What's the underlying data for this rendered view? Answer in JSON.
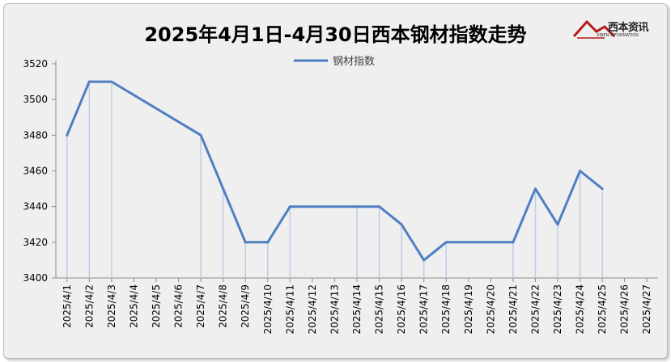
{
  "chart_data": {
    "type": "line",
    "title": "2025年4月1日-4月30日西本钢材指数走势",
    "legend": [
      "钢材指数"
    ],
    "legend_position": "top",
    "categories": [
      "2025/4/1",
      "2025/4/2",
      "2025/4/3",
      "2025/4/4",
      "2025/4/5",
      "2025/4/6",
      "2025/4/7",
      "2025/4/8",
      "2025/4/9",
      "2025/4/10",
      "2025/4/11",
      "2025/4/12",
      "2025/4/13",
      "2025/4/14",
      "2025/4/15",
      "2025/4/16",
      "2025/4/17",
      "2025/4/18",
      "2025/4/19",
      "2025/4/20",
      "2025/4/21",
      "2025/4/22",
      "2025/4/23",
      "2025/4/24",
      "2025/4/25",
      "2025/4/26",
      "2025/4/27"
    ],
    "series": [
      {
        "name": "钢材指数",
        "points": [
          {
            "x": "2025/4/1",
            "y": 3480
          },
          {
            "x": "2025/4/2",
            "y": 3510
          },
          {
            "x": "2025/4/3",
            "y": 3510
          },
          {
            "x": "2025/4/7",
            "y": 3480
          },
          {
            "x": "2025/4/8",
            "y": 3450
          },
          {
            "x": "2025/4/9",
            "y": 3420
          },
          {
            "x": "2025/4/10",
            "y": 3420
          },
          {
            "x": "2025/4/11",
            "y": 3440
          },
          {
            "x": "2025/4/14",
            "y": 3440
          },
          {
            "x": "2025/4/15",
            "y": 3440
          },
          {
            "x": "2025/4/16",
            "y": 3430
          },
          {
            "x": "2025/4/17",
            "y": 3410
          },
          {
            "x": "2025/4/18",
            "y": 3420
          },
          {
            "x": "2025/4/21",
            "y": 3420
          },
          {
            "x": "2025/4/22",
            "y": 3450
          },
          {
            "x": "2025/4/23",
            "y": 3430
          },
          {
            "x": "2025/4/24",
            "y": 3460
          },
          {
            "x": "2025/4/25",
            "y": 3450
          }
        ]
      }
    ],
    "yticks": [
      3400,
      3420,
      3440,
      3460,
      3480,
      3500,
      3520
    ],
    "ylim": [
      3400,
      3520
    ],
    "grid": false,
    "line_color": "#4f7fc2"
  },
  "logo": {
    "text": "西本资讯",
    "subtext": "XIBEN INFORMATION"
  }
}
